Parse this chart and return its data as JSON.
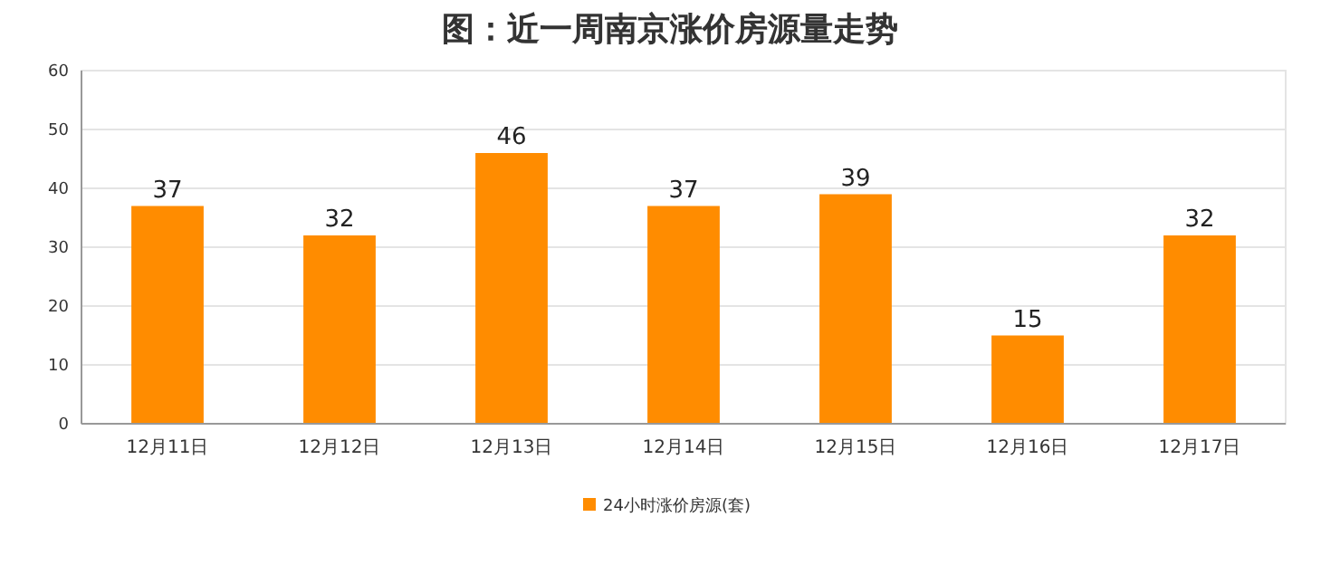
{
  "chart_data": {
    "type": "bar",
    "title": "图：近一周南京涨价房源量走势",
    "categories": [
      "12月11日",
      "12月12日",
      "12月13日",
      "12月14日",
      "12月15日",
      "12月16日",
      "12月17日"
    ],
    "series": [
      {
        "name": "24小时涨价房源(套)",
        "color": "#ff8c00",
        "values": [
          37,
          32,
          46,
          37,
          39,
          15,
          32
        ]
      }
    ],
    "ylim": [
      0,
      60
    ],
    "yticks": [
      0,
      10,
      20,
      30,
      40,
      50,
      60
    ],
    "grid": "y",
    "legend": "bottom",
    "data_labels": true
  }
}
